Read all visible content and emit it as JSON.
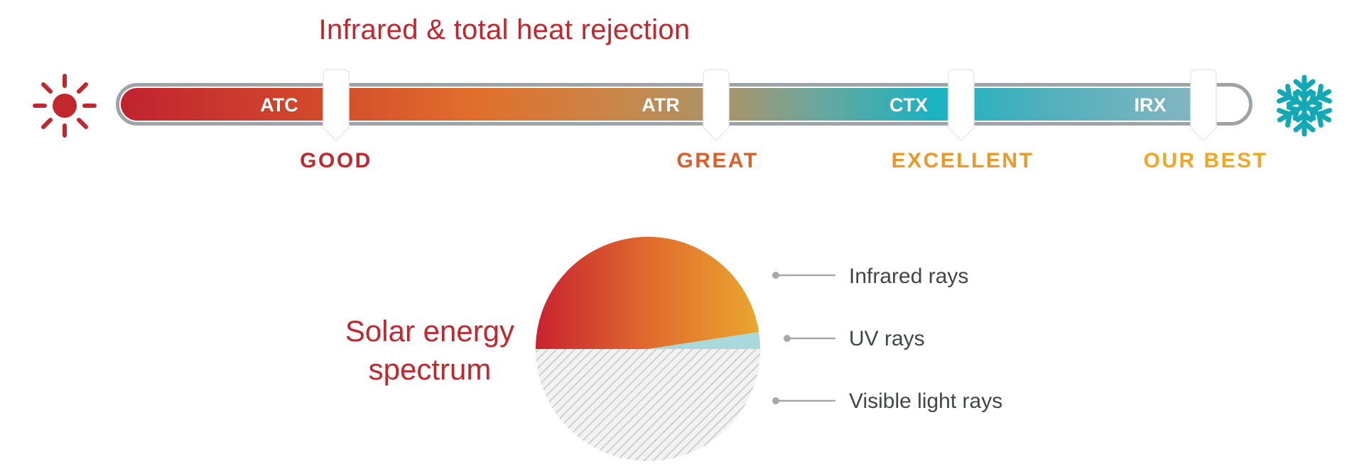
{
  "title": "Infrared & total heat rejection",
  "bar": {
    "gradient": [
      "#c02330",
      "#e16f2c",
      "#1ab2c1",
      "#86b6c1"
    ],
    "labels": [
      "ATC",
      "ATR",
      "CTX",
      "IRX"
    ]
  },
  "ratings": [
    {
      "text": "GOOD",
      "color": "#c1272d"
    },
    {
      "text": "GREAT",
      "color": "#d8602c"
    },
    {
      "text": "EXCELLENT",
      "color": "#e9982a"
    },
    {
      "text": "OUR BEST",
      "color": "#efa826"
    }
  ],
  "icons": {
    "left": "sun-icon",
    "right": "snowflake-icon"
  },
  "spectrum": {
    "label_line1": "Solar energy",
    "label_line2": "spectrum"
  },
  "legend": [
    "Infrared rays",
    "UV rays",
    "Visible light rays"
  ],
  "colors": {
    "accent": "#c1272d",
    "infrared_start": "#c8222f",
    "infrared_end": "#eaa62f",
    "uv": "#a9d9da",
    "visible_hatch": "#c6c6c6",
    "snowflake": "#13a8b6"
  }
}
